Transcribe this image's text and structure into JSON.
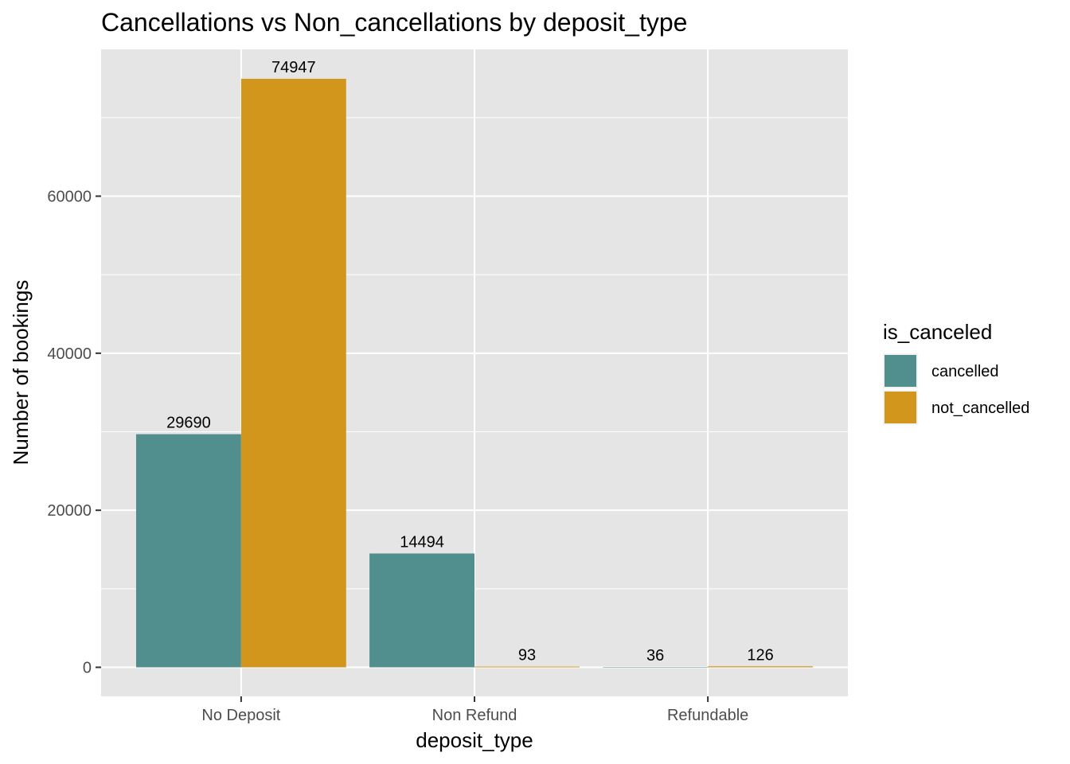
{
  "chart_data": {
    "type": "bar",
    "title": "Cancellations vs Non_cancellations by deposit_type",
    "xlabel": "deposit_type",
    "ylabel": "Number of bookings",
    "categories": [
      "No Deposit",
      "Non Refund",
      "Refundable"
    ],
    "series": [
      {
        "name": "cancelled",
        "values": [
          29690,
          14494,
          36
        ],
        "color": "#518f8f"
      },
      {
        "name": "not_cancelled",
        "values": [
          74947,
          93,
          126
        ],
        "color": "#d3961d"
      }
    ],
    "ylim": [
      -3700,
      78700
    ],
    "yticks": [
      0,
      20000,
      40000,
      60000
    ],
    "ytick_labels": [
      "0",
      "20000",
      "40000",
      "60000"
    ],
    "grid": true,
    "legend": {
      "title": "is_canceled",
      "position": "right"
    }
  }
}
